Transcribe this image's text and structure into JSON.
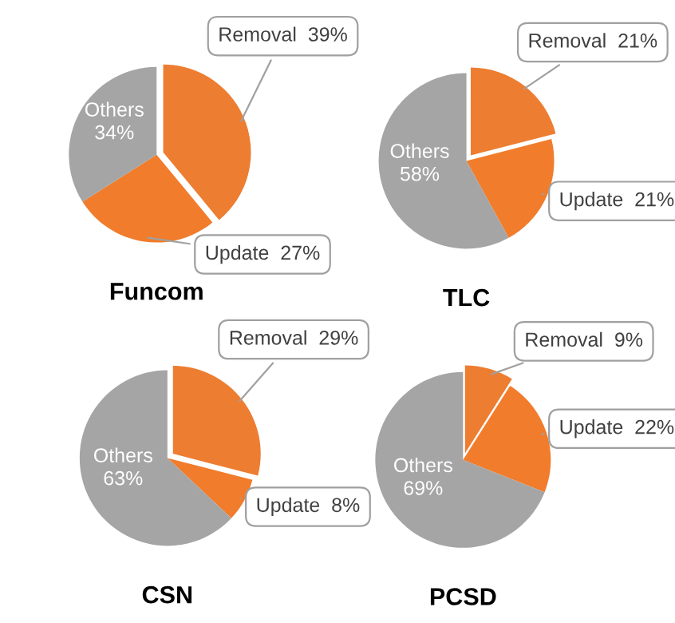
{
  "chart_data": [
    {
      "type": "pie",
      "title": "Funcom",
      "categories": [
        "Removal",
        "Update",
        "Others"
      ],
      "values": [
        39,
        27,
        34
      ],
      "colors": [
        "#ed7d31",
        "#f07c2c",
        "#a5a5a5"
      ],
      "value_labels": [
        "39%",
        "27%",
        "34%"
      ],
      "legend": false
    },
    {
      "type": "pie",
      "title": "TLC",
      "categories": [
        "Removal",
        "Update",
        "Others"
      ],
      "values": [
        21,
        21,
        58
      ],
      "colors": [
        "#ed7d31",
        "#f07c2c",
        "#a5a5a5"
      ],
      "value_labels": [
        "21%",
        "21%",
        "58%"
      ],
      "legend": false
    },
    {
      "type": "pie",
      "title": "CSN",
      "categories": [
        "Removal",
        "Update",
        "Others"
      ],
      "values": [
        29,
        8,
        63
      ],
      "colors": [
        "#ed7d31",
        "#f07c2c",
        "#a5a5a5"
      ],
      "value_labels": [
        "29%",
        "8%",
        "63%"
      ],
      "legend": false
    },
    {
      "type": "pie",
      "title": "PCSD",
      "categories": [
        "Removal",
        "Update",
        "Others"
      ],
      "values": [
        9,
        22,
        69
      ],
      "colors": [
        "#ed7d31",
        "#f07c2c",
        "#a5a5a5"
      ],
      "value_labels": [
        "9%",
        "22%",
        "69%"
      ],
      "legend": false
    }
  ]
}
